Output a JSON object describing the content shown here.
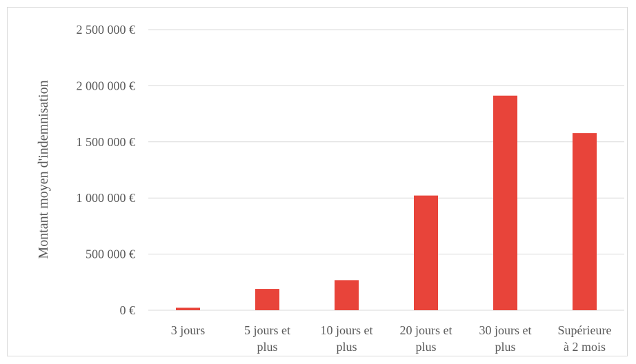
{
  "chart_data": {
    "type": "bar",
    "title": "",
    "xlabel": "",
    "ylabel": "Montant moyen d'indemnisation",
    "categories": [
      [
        "3 jours"
      ],
      [
        "5 jours et",
        "plus"
      ],
      [
        "10 jours et",
        "plus"
      ],
      [
        "20 jours et",
        "plus"
      ],
      [
        "30 jours et",
        "plus"
      ],
      [
        "Supérieure",
        "à 2 mois"
      ]
    ],
    "values": [
      22000,
      190000,
      268000,
      1022000,
      1912000,
      1578000
    ],
    "ylim": [
      0,
      2500000
    ],
    "yticks": [
      0,
      500000,
      1000000,
      1500000,
      2000000,
      2500000
    ],
    "ytick_labels": [
      "0 €",
      "500 000 €",
      "1 000 000 €",
      "1 500 000 €",
      "2 000 000 €",
      "2 500 000 €"
    ],
    "grid": true,
    "legend": "none",
    "colors": {
      "bar": "#e8443a",
      "grid": "#d9d9d9",
      "text": "#595959"
    }
  }
}
